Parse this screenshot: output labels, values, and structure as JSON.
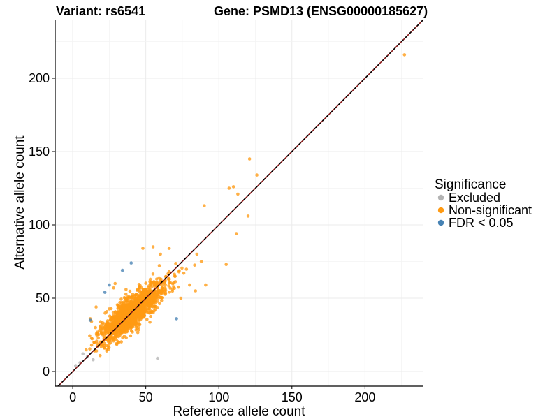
{
  "chart_data": {
    "type": "scatter",
    "title_left": "Variant: rs6541",
    "title_right": "Gene: PSMD13 (ENSG00000185627)",
    "xlabel": "Reference allele count",
    "ylabel": "Alternative allele count",
    "xlim": [
      -12,
      240
    ],
    "ylim": [
      -10,
      240
    ],
    "xticks": [
      0,
      50,
      100,
      150,
      200
    ],
    "yticks": [
      0,
      50,
      100,
      150,
      200
    ],
    "reference_line": {
      "slope": 1,
      "intercept": 0,
      "style": "dashed",
      "colors": [
        "#000000",
        "#8b1a1a"
      ]
    },
    "legend": {
      "title": "Significance",
      "position": "right",
      "entries": [
        {
          "label": "Excluded",
          "color": "#b3b3b3"
        },
        {
          "label": "Non-significant",
          "color": "#ff9a12"
        },
        {
          "label": "FDR < 0.05",
          "color": "#4682b4"
        }
      ]
    },
    "series": [
      {
        "name": "Excluded",
        "color": "#b3b3b3",
        "points": [
          [
            2,
            4
          ],
          [
            7,
            12
          ],
          [
            14,
            8
          ],
          [
            58,
            9
          ],
          [
            10,
            10
          ],
          [
            5,
            6
          ]
        ]
      },
      {
        "name": "FDR < 0.05",
        "color": "#4682b4",
        "points": [
          [
            12,
            35
          ],
          [
            22,
            54
          ],
          [
            25,
            59
          ],
          [
            34,
            69
          ],
          [
            40,
            74
          ],
          [
            71,
            36
          ]
        ]
      },
      {
        "name": "Non-significant",
        "color": "#ff9a12",
        "generated": {
          "count": 1400,
          "center": [
            40,
            40
          ],
          "sd": [
            11,
            10
          ],
          "correlation": 0.82,
          "seed": 6541
        },
        "points": [
          [
            227,
            216
          ],
          [
            121,
            145
          ],
          [
            110,
            126
          ],
          [
            107,
            125
          ],
          [
            126,
            134
          ],
          [
            90,
            113
          ],
          [
            120,
            106
          ],
          [
            112,
            94
          ],
          [
            105,
            73
          ],
          [
            113,
            121
          ],
          [
            88,
            75
          ],
          [
            91,
            59
          ],
          [
            80,
            59
          ],
          [
            84,
            55
          ],
          [
            85,
            80
          ],
          [
            55,
            85
          ],
          [
            60,
            80
          ],
          [
            48,
            84
          ],
          [
            66,
            84
          ],
          [
            16,
            44
          ],
          [
            12,
            36
          ],
          [
            18,
            18
          ],
          [
            15,
            14
          ],
          [
            20,
            26
          ],
          [
            74,
            50
          ],
          [
            76,
            67
          ],
          [
            70,
            65
          ],
          [
            29,
            60
          ],
          [
            28,
            57
          ]
        ]
      }
    ]
  }
}
